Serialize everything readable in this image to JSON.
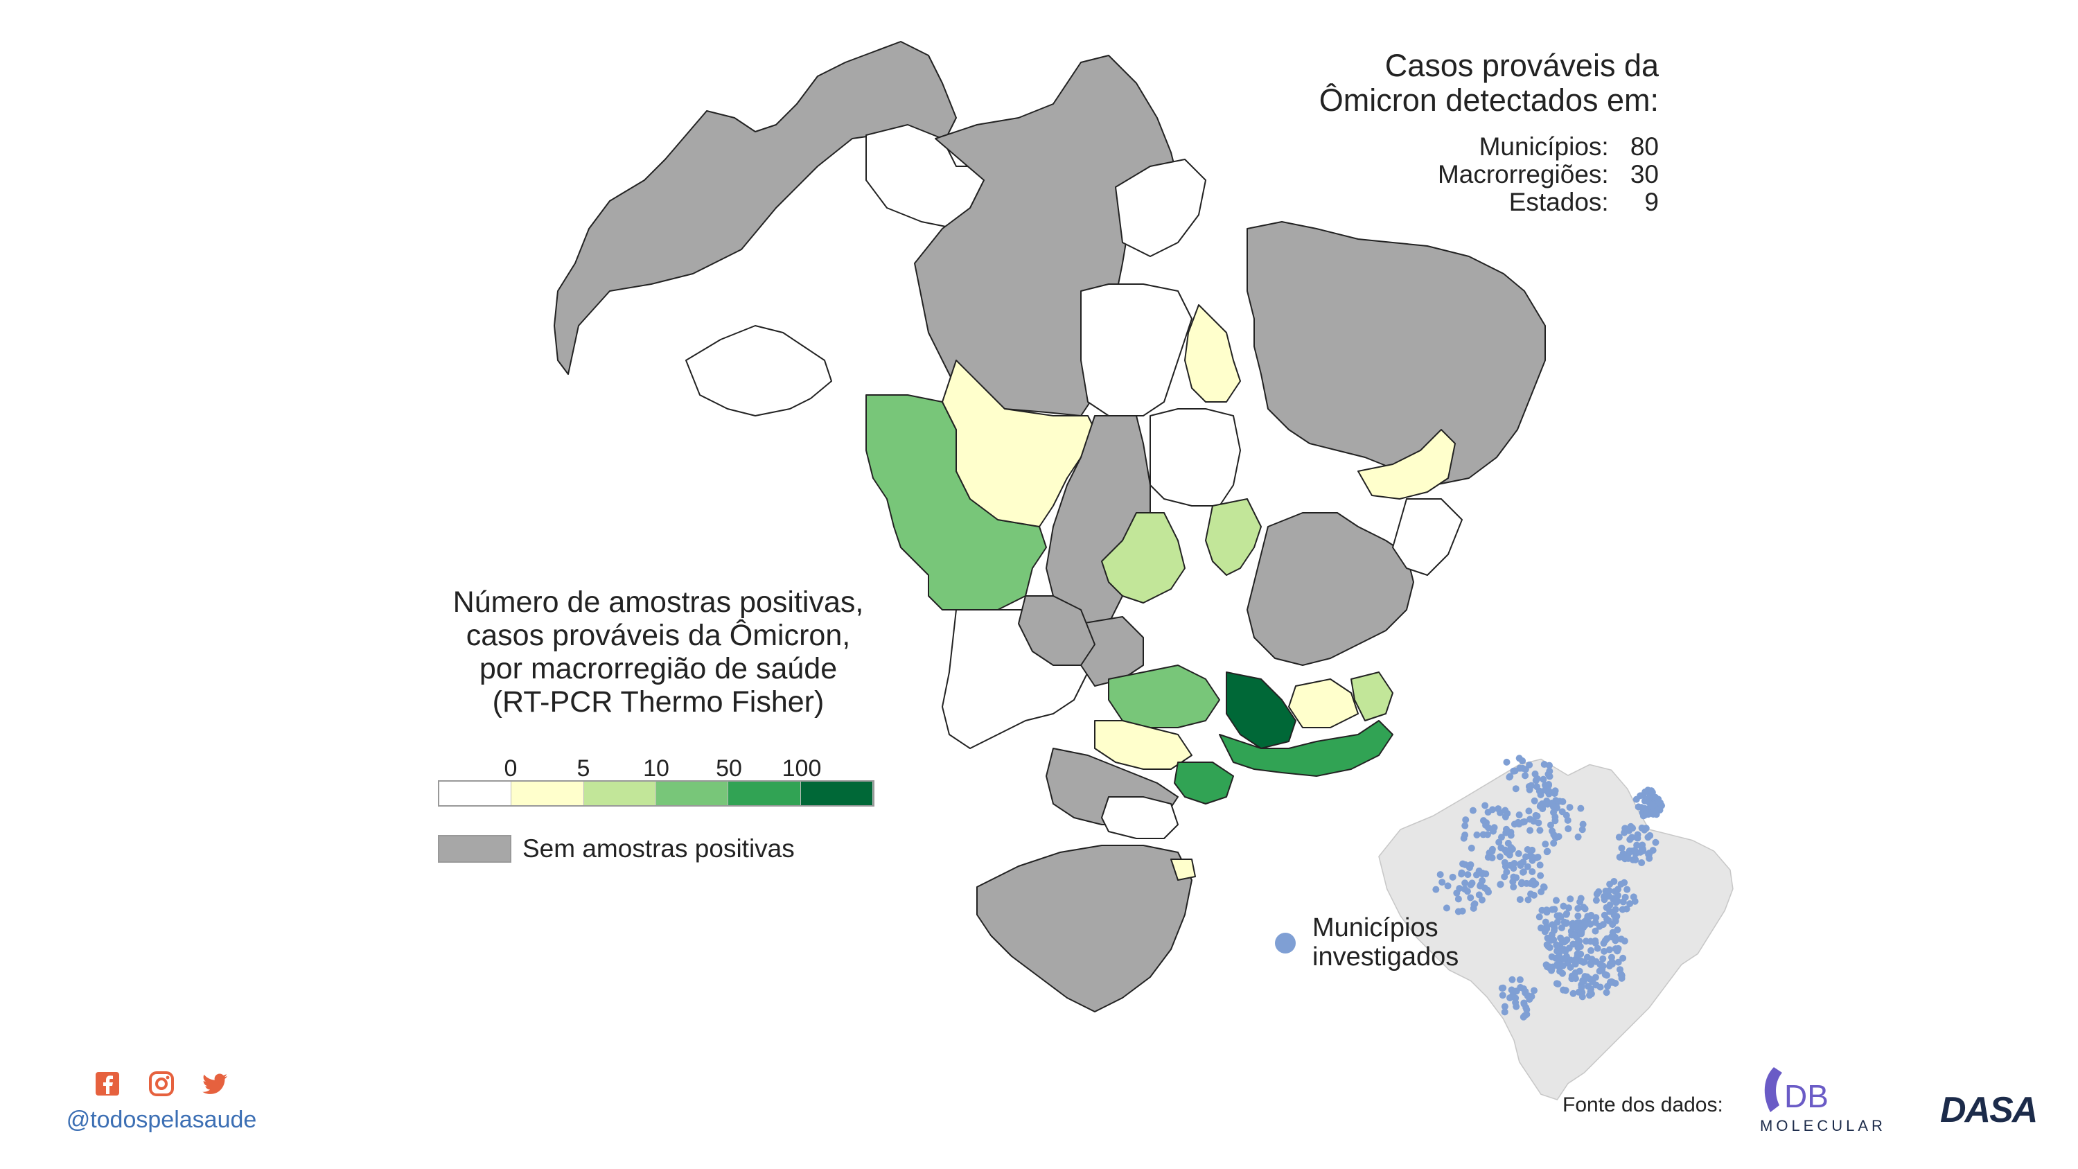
{
  "summary": {
    "title_line1": "Casos prováveis da",
    "title_line2": "Ômicron detectados em:",
    "rows": [
      {
        "label": "Municípios:",
        "value": "80"
      },
      {
        "label": "Macrorregiões:",
        "value": "30"
      },
      {
        "label": "Estados:",
        "value": "9"
      }
    ]
  },
  "legend": {
    "title_line1": "Número de amostras positivas,",
    "title_line2": "casos prováveis da Ômicron,",
    "title_line3": "por macrorregião de saúde",
    "title_line4": "(RT-PCR Thermo Fisher)",
    "ticks": [
      "0",
      "5",
      "10",
      "50",
      "100"
    ],
    "bin_colors": [
      "#ffffff",
      "#ffffcc",
      "#c2e699",
      "#78c679",
      "#31a354",
      "#006837"
    ],
    "no_sample_label": "Sem amostras positivas",
    "no_sample_color": "#a7a7a7"
  },
  "inset": {
    "label_line1": "Municípios",
    "label_line2": "investigados",
    "dot_color": "#7f9fd4",
    "land_color": "#e6e6e6"
  },
  "footer": {
    "social_icons": [
      "facebook-icon",
      "instagram-icon",
      "twitter-icon"
    ],
    "handle": "@todospelasaude",
    "source_label": "Fonte dos dados:",
    "db_logo_text_top": "DB",
    "db_logo_text_bottom": "MOLECULAR",
    "dasa_logo_text": "DASA"
  }
}
